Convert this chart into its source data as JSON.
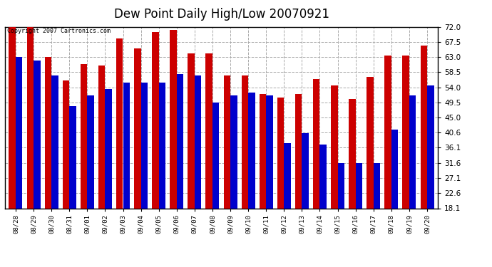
{
  "title": "Dew Point Daily High/Low 20070921",
  "copyright": "Copyright 2007 Cartronics.com",
  "dates": [
    "08/28",
    "08/29",
    "08/30",
    "08/31",
    "09/01",
    "09/02",
    "09/03",
    "09/04",
    "09/05",
    "09/06",
    "09/07",
    "09/08",
    "09/09",
    "09/10",
    "09/11",
    "09/12",
    "09/13",
    "09/14",
    "09/15",
    "09/16",
    "09/17",
    "09/18",
    "09/19",
    "09/20"
  ],
  "highs": [
    72.0,
    72.0,
    63.0,
    56.0,
    61.0,
    60.5,
    68.5,
    65.5,
    70.5,
    71.0,
    64.0,
    64.0,
    57.5,
    57.5,
    52.0,
    51.0,
    52.0,
    56.5,
    54.5,
    50.5,
    57.0,
    63.5,
    63.5,
    66.5
  ],
  "lows": [
    63.0,
    62.0,
    57.5,
    48.5,
    51.5,
    53.5,
    55.5,
    55.5,
    55.5,
    58.0,
    57.5,
    49.5,
    51.5,
    52.5,
    51.5,
    37.5,
    40.5,
    37.0,
    31.5,
    31.5,
    31.5,
    41.5,
    51.5,
    54.5
  ],
  "high_color": "#cc0000",
  "low_color": "#0000cc",
  "bg_color": "#ffffff",
  "grid_color": "#aaaaaa",
  "ymin": 18.1,
  "ymax": 72.0,
  "yticks": [
    18.1,
    22.6,
    27.1,
    31.6,
    36.1,
    40.6,
    45.0,
    49.5,
    54.0,
    58.5,
    63.0,
    67.5,
    72.0
  ],
  "bar_width": 0.38,
  "title_fontsize": 12,
  "xtick_fontsize": 6.5,
  "ytick_fontsize": 7.5
}
